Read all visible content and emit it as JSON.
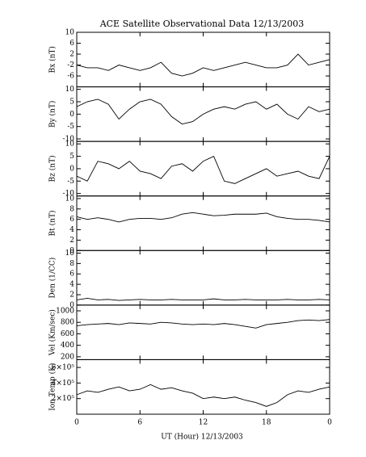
{
  "chart_data": [
    {
      "type": "line",
      "title": "ACE Satellite Observational Data   12/13/2003",
      "ylabel": "Bx (nT)",
      "x": [
        0,
        1,
        2,
        3,
        4,
        5,
        6,
        7,
        8,
        9,
        10,
        11,
        12,
        13,
        14,
        15,
        16,
        17,
        18,
        19,
        20,
        21,
        22,
        23,
        24
      ],
      "values": [
        -2,
        -3,
        -3,
        -4,
        -2,
        -3,
        -4,
        -3,
        -1,
        -5,
        -6,
        -5,
        -3,
        -4,
        -3,
        -2,
        -1,
        -2,
        -3,
        -3,
        -2,
        2,
        -2,
        -1,
        0
      ],
      "xlim": [
        0,
        24
      ],
      "ylim": [
        -10,
        10
      ],
      "yticks": [
        10,
        6,
        2,
        -2,
        -6
      ]
    },
    {
      "type": "line",
      "ylabel": "By (nT)",
      "x": [
        0,
        1,
        2,
        3,
        4,
        5,
        6,
        7,
        8,
        9,
        10,
        11,
        12,
        13,
        14,
        15,
        16,
        17,
        18,
        19,
        20,
        21,
        22,
        23,
        24
      ],
      "values": [
        3,
        5,
        6,
        4,
        -2,
        2,
        5,
        6,
        4,
        -1,
        -4,
        -3,
        0,
        2,
        3,
        2,
        4,
        5,
        2,
        4,
        0,
        -2,
        3,
        1,
        2
      ],
      "xlim": [
        0,
        24
      ],
      "ylim": [
        -11,
        11
      ],
      "yticks": [
        10,
        5,
        0,
        -5,
        -10
      ]
    },
    {
      "type": "line",
      "ylabel": "Bz (nT)",
      "x": [
        0,
        1,
        2,
        3,
        4,
        5,
        6,
        7,
        8,
        9,
        10,
        11,
        12,
        13,
        14,
        15,
        16,
        17,
        18,
        19,
        20,
        21,
        22,
        23,
        24
      ],
      "values": [
        -3,
        -5,
        3,
        2,
        0,
        3,
        -1,
        -2,
        -4,
        1,
        2,
        -1,
        3,
        5,
        -5,
        -6,
        -4,
        -2,
        0,
        -3,
        -2,
        -1,
        -3,
        -4,
        5
      ],
      "xlim": [
        0,
        24
      ],
      "ylim": [
        -11,
        11
      ],
      "yticks": [
        10,
        5,
        0,
        -5,
        -10
      ]
    },
    {
      "type": "line",
      "ylabel": "Bt (nT)",
      "x": [
        0,
        1,
        2,
        3,
        4,
        5,
        6,
        7,
        8,
        9,
        10,
        11,
        12,
        13,
        14,
        15,
        16,
        17,
        18,
        19,
        20,
        21,
        22,
        23,
        24
      ],
      "values": [
        6.5,
        6,
        6.3,
        6,
        5.5,
        6,
        6.2,
        6.2,
        6,
        6.3,
        7,
        7.3,
        7,
        6.7,
        6.8,
        7,
        7,
        7,
        7.2,
        6.5,
        6.2,
        6,
        6,
        5.8,
        5.5
      ],
      "xlim": [
        0,
        24
      ],
      "ylim": [
        0,
        10.5
      ],
      "yticks": [
        10,
        8,
        6,
        4,
        2,
        0
      ]
    },
    {
      "type": "line",
      "ylabel": "Den (1/CC)",
      "x": [
        0,
        1,
        2,
        3,
        4,
        5,
        6,
        7,
        8,
        9,
        10,
        11,
        12,
        13,
        14,
        15,
        16,
        17,
        18,
        19,
        20,
        21,
        22,
        23,
        24
      ],
      "values": [
        1,
        1.3,
        1,
        1.1,
        0.9,
        1,
        1.1,
        1,
        1,
        1.1,
        1,
        1,
        1,
        1.2,
        1,
        1,
        1.1,
        1,
        1,
        1,
        1.1,
        1,
        1,
        1.1,
        1
      ],
      "xlim": [
        0,
        24
      ],
      "ylim": [
        0,
        10.5
      ],
      "yticks": [
        10,
        8,
        6,
        4,
        2,
        0
      ]
    },
    {
      "type": "line",
      "ylabel": "Vel (Km/sec)",
      "x": [
        0,
        1,
        2,
        3,
        4,
        5,
        6,
        7,
        8,
        9,
        10,
        11,
        12,
        13,
        14,
        15,
        16,
        17,
        18,
        19,
        20,
        21,
        22,
        23,
        24
      ],
      "values": [
        740,
        760,
        770,
        780,
        760,
        790,
        780,
        770,
        800,
        790,
        770,
        760,
        770,
        760,
        780,
        760,
        730,
        700,
        760,
        780,
        800,
        830,
        840,
        830,
        850
      ],
      "xlim": [
        0,
        24
      ],
      "ylim": [
        150,
        1100
      ],
      "yticks": [
        1000,
        800,
        600,
        400,
        200
      ]
    },
    {
      "type": "line",
      "ylabel": "Ion Temp (K)",
      "xlabel": "UT (Hour)  12/13/2003",
      "x": [
        0,
        1,
        2,
        3,
        4,
        5,
        6,
        7,
        8,
        9,
        10,
        11,
        12,
        13,
        14,
        15,
        16,
        17,
        18,
        19,
        20,
        21,
        22,
        23,
        24
      ],
      "values": [
        250000,
        300000,
        280000,
        320000,
        350000,
        300000,
        320000,
        380000,
        320000,
        340000,
        300000,
        270000,
        200000,
        220000,
        200000,
        220000,
        180000,
        150000,
        100000,
        150000,
        250000,
        300000,
        280000,
        320000,
        350000
      ],
      "xlim": [
        0,
        24
      ],
      "ylim": [
        0,
        700000
      ],
      "yticks": [
        {
          "value": 600000,
          "label": "6×10⁵"
        },
        {
          "value": 400000,
          "label": "4×10⁵"
        },
        {
          "value": 200000,
          "label": "2×10⁵"
        }
      ],
      "xticks": [
        0,
        6,
        12,
        18,
        {
          "value": 24,
          "label": "0"
        }
      ]
    }
  ]
}
